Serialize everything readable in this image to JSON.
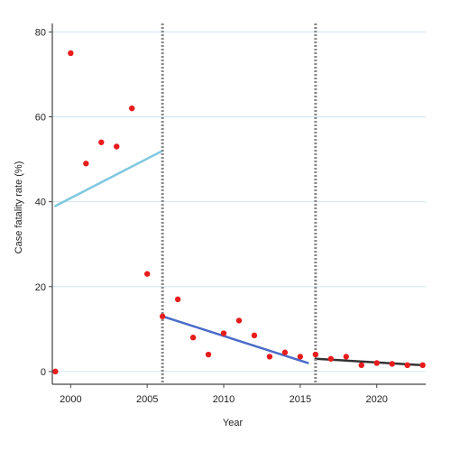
{
  "chart_data": {
    "type": "scatter",
    "title": "",
    "xlabel": "Year",
    "ylabel": "Case fatality rate (%)",
    "xlim": [
      1998.8,
      2023.2
    ],
    "ylim": [
      -3,
      82
    ],
    "xticks": [
      2000,
      2005,
      2010,
      2015,
      2020
    ],
    "xtick_labels": [
      "2000",
      "2005",
      "2010",
      "2015",
      "2020"
    ],
    "yticks": [
      0,
      20,
      40,
      60,
      80
    ],
    "ytick_labels": [
      "0",
      "20",
      "40",
      "60",
      "80"
    ],
    "grid": "horizontal",
    "legend": "none",
    "breakpoints": [
      2006,
      2016
    ],
    "points": [
      {
        "x": 1999,
        "y": 0
      },
      {
        "x": 2000,
        "y": 75
      },
      {
        "x": 2001,
        "y": 49
      },
      {
        "x": 2002,
        "y": 54
      },
      {
        "x": 2003,
        "y": 53
      },
      {
        "x": 2004,
        "y": 62
      },
      {
        "x": 2005,
        "y": 23
      },
      {
        "x": 2006,
        "y": 13
      },
      {
        "x": 2007,
        "y": 17
      },
      {
        "x": 2008,
        "y": 8
      },
      {
        "x": 2009,
        "y": 4
      },
      {
        "x": 2010,
        "y": 9
      },
      {
        "x": 2011,
        "y": 12
      },
      {
        "x": 2012,
        "y": 8.5
      },
      {
        "x": 2013,
        "y": 3.5
      },
      {
        "x": 2014,
        "y": 4.5
      },
      {
        "x": 2015,
        "y": 3.5
      },
      {
        "x": 2016,
        "y": 4
      },
      {
        "x": 2017,
        "y": 3
      },
      {
        "x": 2018,
        "y": 3.5
      },
      {
        "x": 2019,
        "y": 1.5
      },
      {
        "x": 2020,
        "y": 2
      },
      {
        "x": 2021,
        "y": 1.8
      },
      {
        "x": 2022,
        "y": 1.5
      },
      {
        "x": 2023,
        "y": 1.5
      }
    ],
    "fit_lines": [
      {
        "x": [
          1999,
          2006
        ],
        "y": [
          39,
          52
        ],
        "color": "#7fc8e0"
      },
      {
        "x": [
          2006,
          2015.5
        ],
        "y": [
          13,
          2
        ],
        "color": "#4a6cc8"
      },
      {
        "x": [
          2016,
          2023
        ],
        "y": [
          3,
          1.5
        ],
        "color": "#333333"
      }
    ],
    "point_color": "#e81c1c",
    "grid_color": "#cfe6f0",
    "breakpoint_color": "#888888"
  }
}
